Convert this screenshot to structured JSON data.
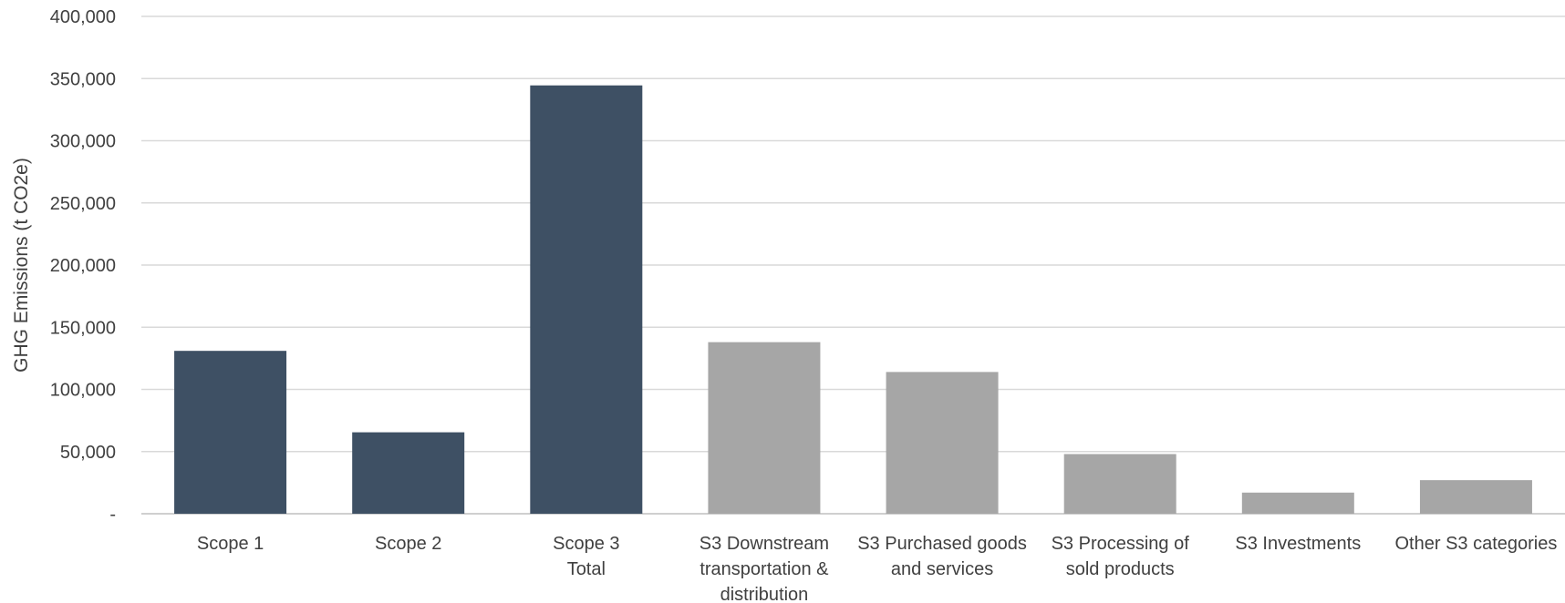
{
  "chart_data": {
    "type": "bar",
    "title": "",
    "xlabel": "",
    "ylabel": "GHG Emissions (t CO2e)",
    "ylim": [
      0,
      400000
    ],
    "yticks": [
      0,
      50000,
      100000,
      150000,
      200000,
      250000,
      300000,
      350000,
      400000
    ],
    "ytick_labels": [
      "-",
      "50,000",
      "100,000",
      "150,000",
      "200,000",
      "250,000",
      "300,000",
      "350,000",
      "400,000"
    ],
    "grid": true,
    "legend": "none",
    "categories": [
      [
        "Scope 1"
      ],
      [
        "Scope 2"
      ],
      [
        "Scope 3",
        "Total"
      ],
      [
        "S3 Downstream",
        "transportation &",
        "distribution"
      ],
      [
        "S3 Purchased goods",
        "and services"
      ],
      [
        "S3 Processing of",
        "sold products"
      ],
      [
        "S3 Investments"
      ],
      [
        "Other S3 categories"
      ]
    ],
    "values": [
      131000,
      65500,
      344500,
      138000,
      114000,
      48000,
      17000,
      27000
    ],
    "bar_colors": [
      "#3e5064",
      "#3e5064",
      "#3e5064",
      "#a6a6a6",
      "#a6a6a6",
      "#a6a6a6",
      "#a6a6a6",
      "#a6a6a6"
    ]
  }
}
